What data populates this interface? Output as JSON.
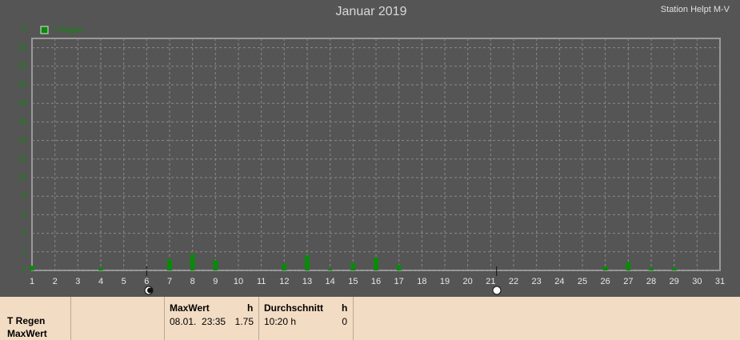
{
  "chart_data": {
    "type": "bar",
    "title": "Januar 2019",
    "subtitle": "Station Helpt M-V",
    "y_label": "h",
    "categories": [
      "1",
      "2",
      "3",
      "4",
      "5",
      "6",
      "7",
      "8",
      "9",
      "10",
      "11",
      "12",
      "13",
      "14",
      "15",
      "16",
      "17",
      "18",
      "19",
      "20",
      "21",
      "22",
      "23",
      "24",
      "25",
      "26",
      "27",
      "28",
      "29",
      "30",
      "31"
    ],
    "series": [
      {
        "name": "T Regen",
        "color": "#0a8a0a",
        "values": [
          0.5,
          0,
          0,
          0.3,
          0,
          0,
          1.2,
          1.75,
          1.1,
          0,
          0,
          0.7,
          1.6,
          0.2,
          0.8,
          1.4,
          0.6,
          0,
          0,
          0,
          0,
          0,
          0,
          0,
          0,
          0.4,
          0.9,
          0.3,
          0.3,
          0,
          0
        ]
      }
    ],
    "ylim": [
      0,
      25
    ],
    "yticks": [
      0,
      2,
      4,
      6,
      8,
      10,
      12,
      14,
      16,
      18,
      20,
      22,
      24
    ],
    "grid": true
  },
  "summary_table": {
    "row_labels": [
      "T Regen",
      "MaxWert"
    ],
    "columns": [
      {
        "header": "MaxWert",
        "unit": "h",
        "time": "08.01.  23:35",
        "value": 1.75
      },
      {
        "header": "Durchschnitt",
        "unit": "h",
        "time": "10:20 h",
        "value": 0
      }
    ]
  }
}
